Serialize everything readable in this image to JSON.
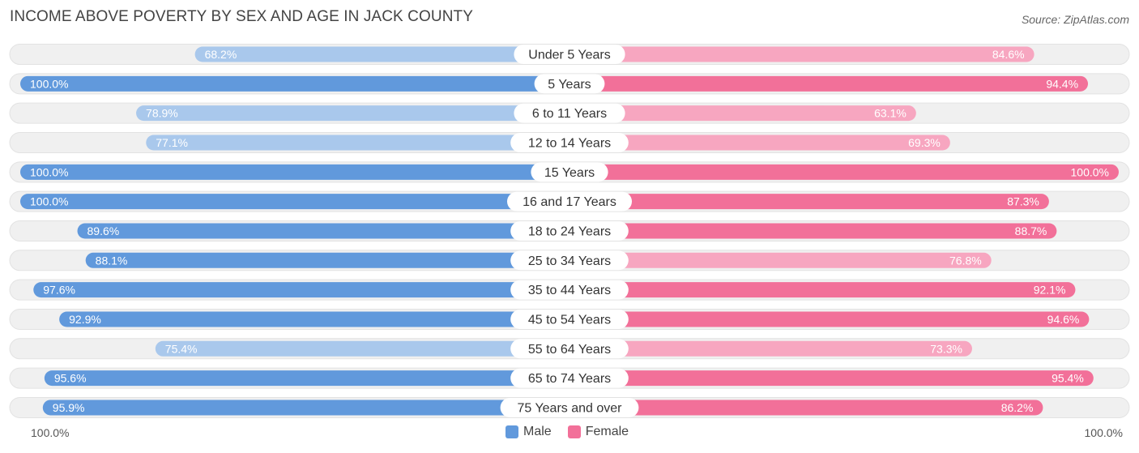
{
  "title": "INCOME ABOVE POVERTY BY SEX AND AGE IN JACK COUNTY",
  "source": "Source: ZipAtlas.com",
  "colors": {
    "male_strong": "#6199dc",
    "male_light": "#a9c8ec",
    "female_strong": "#f27099",
    "female_light": "#f7a6c0",
    "track": "#f0f0f0"
  },
  "legend": {
    "male": "Male",
    "female": "Female"
  },
  "axis": {
    "left_label": "100.0%",
    "right_label": "100.0%"
  },
  "chart_data": {
    "type": "bar",
    "orientation": "horizontal-diverging",
    "title": "INCOME ABOVE POVERTY BY SEX AND AGE IN JACK COUNTY",
    "xlim": [
      0,
      100
    ],
    "categories": [
      "Under 5 Years",
      "5 Years",
      "6 to 11 Years",
      "12 to 14 Years",
      "15 Years",
      "16 and 17 Years",
      "18 to 24 Years",
      "25 to 34 Years",
      "35 to 44 Years",
      "45 to 54 Years",
      "55 to 64 Years",
      "65 to 74 Years",
      "75 Years and over"
    ],
    "series": [
      {
        "name": "Male",
        "values": [
          68.2,
          100.0,
          78.9,
          77.1,
          100.0,
          100.0,
          89.6,
          88.1,
          97.6,
          92.9,
          75.4,
          95.6,
          95.9
        ],
        "labels": [
          "68.2%",
          "100.0%",
          "78.9%",
          "77.1%",
          "100.0%",
          "100.0%",
          "89.6%",
          "88.1%",
          "97.6%",
          "92.9%",
          "75.4%",
          "95.6%",
          "95.9%"
        ]
      },
      {
        "name": "Female",
        "values": [
          84.6,
          94.4,
          63.1,
          69.3,
          100.0,
          87.3,
          88.7,
          76.8,
          92.1,
          94.6,
          73.3,
          95.4,
          86.2
        ],
        "labels": [
          "84.6%",
          "94.4%",
          "63.1%",
          "69.3%",
          "100.0%",
          "87.3%",
          "88.7%",
          "76.8%",
          "92.1%",
          "94.6%",
          "73.3%",
          "95.4%",
          "86.2%"
        ]
      }
    ],
    "legend_position": "bottom-center"
  }
}
